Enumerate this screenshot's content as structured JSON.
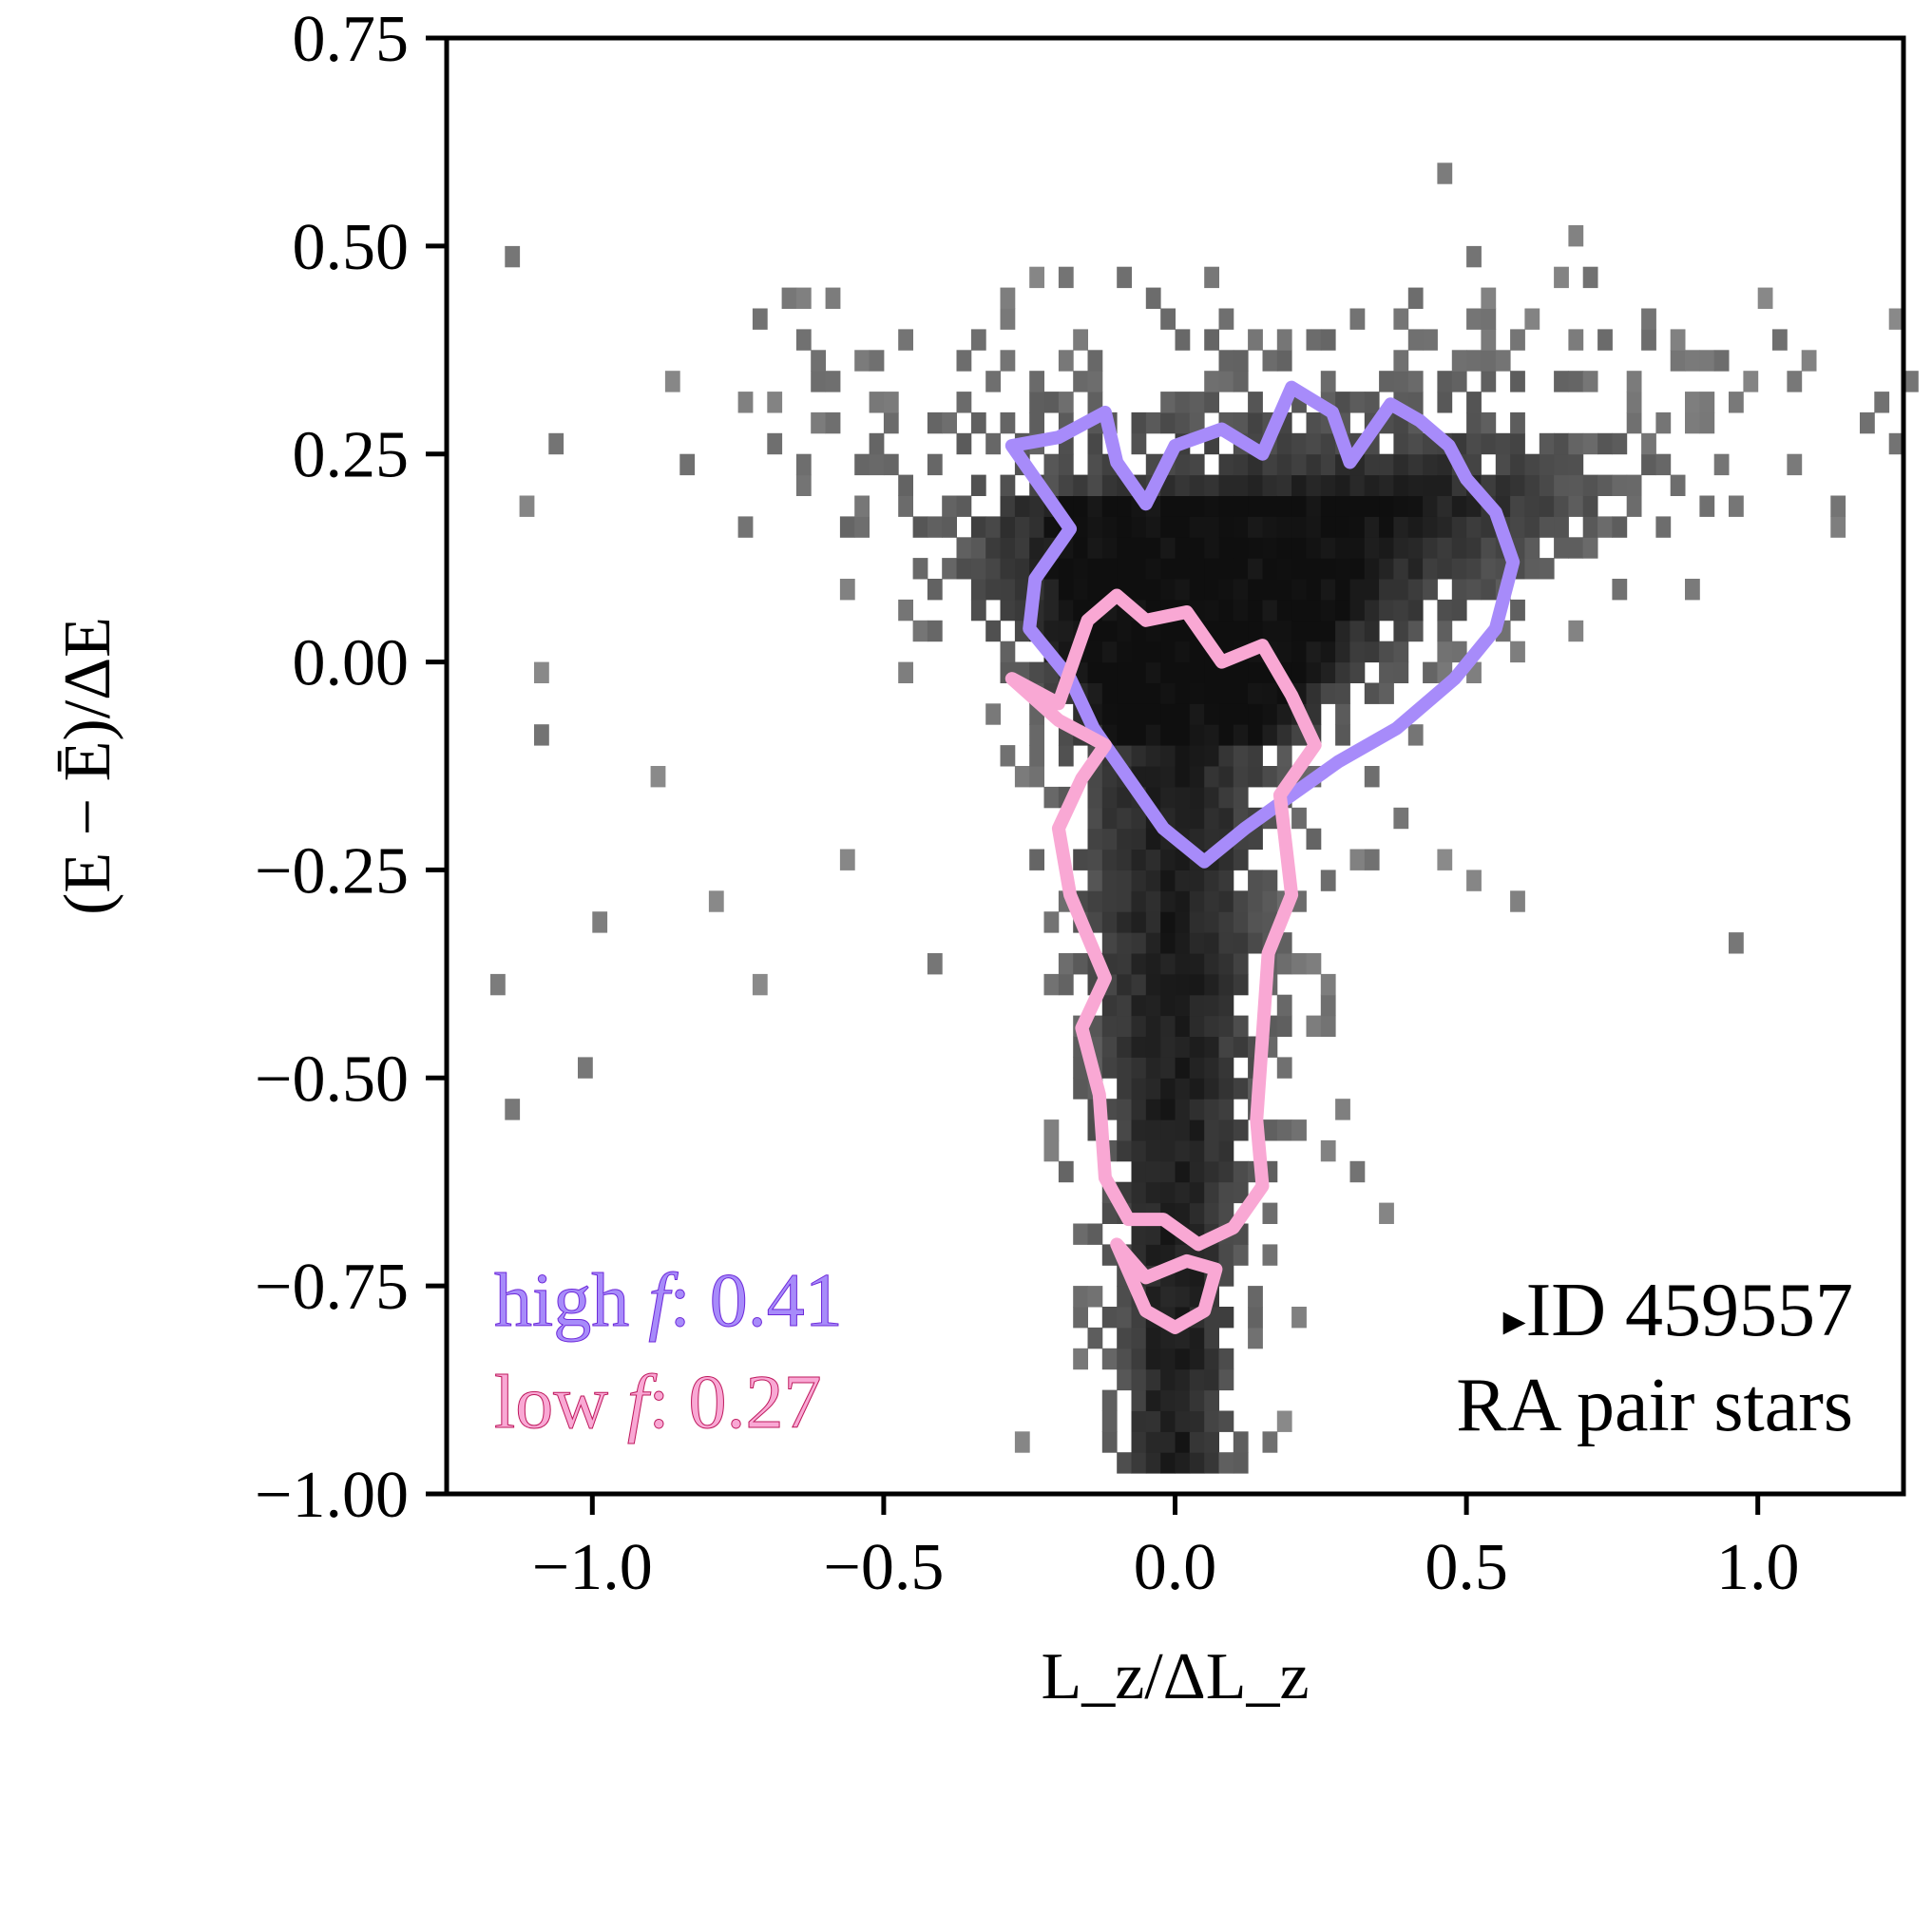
{
  "chart_data": {
    "type": "heatmap",
    "title": "",
    "xlabel": "L_z/ΔL_z",
    "ylabel": "(E − Ē)/ΔE",
    "xlim": [
      -1.25,
      1.25
    ],
    "ylim": [
      -1.0,
      0.75
    ],
    "x_ticks": [
      -1.0,
      -0.5,
      0.0,
      0.5,
      1.0
    ],
    "x_tick_labels": [
      "−1.0",
      "−0.5",
      "0.0",
      "0.5",
      "1.0"
    ],
    "y_ticks": [
      0.75,
      0.5,
      0.25,
      0.0,
      -0.25,
      -0.5,
      -0.75,
      -1.0
    ],
    "y_tick_labels": [
      "0.75",
      "0.50",
      "0.25",
      "0.00",
      "−0.25",
      "−0.50",
      "−0.75",
      "−1.00"
    ],
    "grid": false,
    "density_description": "2D histogram of stars; densest near Lz≈0.05, E≈0.05 with a funnel tail to E≈−0.95",
    "series": [
      {
        "name": "high f",
        "color": "#a78bfa",
        "fraction_label": "0.41",
        "contour": [
          [
            -0.28,
            0.26
          ],
          [
            -0.2,
            0.27
          ],
          [
            -0.12,
            0.3
          ],
          [
            -0.1,
            0.24
          ],
          [
            -0.05,
            0.19
          ],
          [
            0.0,
            0.26
          ],
          [
            0.08,
            0.28
          ],
          [
            0.15,
            0.25
          ],
          [
            0.2,
            0.33
          ],
          [
            0.27,
            0.3
          ],
          [
            0.3,
            0.24
          ],
          [
            0.37,
            0.31
          ],
          [
            0.42,
            0.29
          ],
          [
            0.47,
            0.26
          ],
          [
            0.5,
            0.22
          ],
          [
            0.55,
            0.18
          ],
          [
            0.58,
            0.12
          ],
          [
            0.55,
            0.04
          ],
          [
            0.48,
            -0.02
          ],
          [
            0.38,
            -0.08
          ],
          [
            0.28,
            -0.12
          ],
          [
            0.2,
            -0.16
          ],
          [
            0.12,
            -0.2
          ],
          [
            0.05,
            -0.24
          ],
          [
            -0.02,
            -0.2
          ],
          [
            -0.08,
            -0.14
          ],
          [
            -0.14,
            -0.08
          ],
          [
            -0.18,
            -0.02
          ],
          [
            -0.25,
            0.04
          ],
          [
            -0.24,
            0.1
          ],
          [
            -0.18,
            0.16
          ],
          [
            -0.24,
            0.22
          ],
          [
            -0.28,
            0.26
          ]
        ]
      },
      {
        "name": "low f",
        "color": "#f9a8d4",
        "fraction_label": "0.27",
        "contour": [
          [
            -0.28,
            -0.02
          ],
          [
            -0.2,
            -0.05
          ],
          [
            -0.15,
            0.05
          ],
          [
            -0.1,
            0.08
          ],
          [
            -0.05,
            0.05
          ],
          [
            0.02,
            0.06
          ],
          [
            0.08,
            0.0
          ],
          [
            0.15,
            0.02
          ],
          [
            0.2,
            -0.04
          ],
          [
            0.24,
            -0.1
          ],
          [
            0.18,
            -0.16
          ],
          [
            0.2,
            -0.28
          ],
          [
            0.16,
            -0.35
          ],
          [
            0.15,
            -0.45
          ],
          [
            0.14,
            -0.55
          ],
          [
            0.15,
            -0.63
          ],
          [
            0.1,
            -0.68
          ],
          [
            0.04,
            -0.7
          ],
          [
            -0.02,
            -0.67
          ],
          [
            -0.08,
            -0.67
          ],
          [
            -0.12,
            -0.62
          ],
          [
            -0.13,
            -0.52
          ],
          [
            -0.16,
            -0.44
          ],
          [
            -0.12,
            -0.38
          ],
          [
            -0.18,
            -0.28
          ],
          [
            -0.2,
            -0.2
          ],
          [
            -0.16,
            -0.14
          ],
          [
            -0.12,
            -0.1
          ],
          [
            -0.2,
            -0.07
          ],
          [
            -0.28,
            -0.02
          ]
        ],
        "contour2": [
          [
            -0.1,
            -0.7
          ],
          [
            -0.05,
            -0.74
          ],
          [
            0.02,
            -0.72
          ],
          [
            0.07,
            -0.73
          ],
          [
            0.05,
            -0.78
          ],
          [
            0.0,
            -0.8
          ],
          [
            -0.05,
            -0.78
          ],
          [
            -0.1,
            -0.7
          ]
        ]
      }
    ],
    "legend": {
      "placement": "lower-left",
      "entries": [
        {
          "name": "high",
          "symbol": "f",
          "value": ": 0.41"
        },
        {
          "name": "low",
          "symbol": "f",
          "value": ": 0.27"
        }
      ]
    },
    "annotation": {
      "marker": "▸",
      "id_text": "ID 459557",
      "subtitle": "RA pair stars",
      "placement": "lower-right"
    }
  }
}
